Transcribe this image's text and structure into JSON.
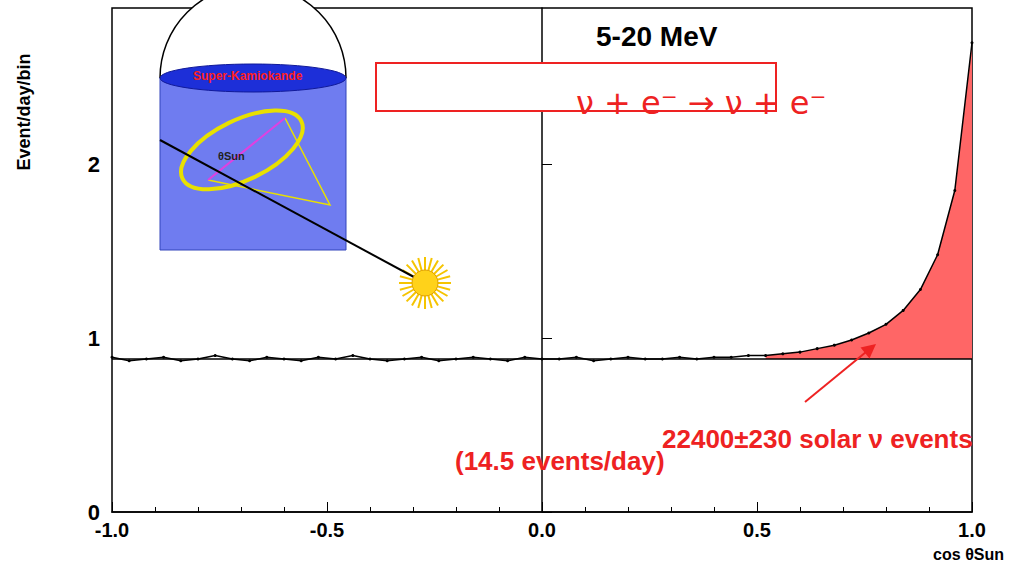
{
  "chart_data": {
    "type": "line",
    "title": "5-20 MeV",
    "annotations": [
      "ν + e⁻ → ν + e⁻",
      "22400±230 solar ν events",
      "(14.5 events/day)"
    ],
    "inset_labels": [
      "Super-Kamiokande",
      "θSun"
    ],
    "x_label": "cos θSun",
    "y_label": "Event/day/bin",
    "x": [
      -1.0,
      -0.96,
      -0.92,
      -0.88,
      -0.84,
      -0.8,
      -0.76,
      -0.72,
      -0.68,
      -0.64,
      -0.6,
      -0.56,
      -0.52,
      -0.48,
      -0.44,
      -0.4,
      -0.36,
      -0.32,
      -0.28,
      -0.24,
      -0.2,
      -0.16,
      -0.12,
      -0.08,
      -0.04,
      0.0,
      0.04,
      0.08,
      0.12,
      0.16,
      0.2,
      0.24,
      0.28,
      0.32,
      0.36,
      0.4,
      0.44,
      0.48,
      0.52,
      0.56,
      0.6,
      0.64,
      0.68,
      0.72,
      0.76,
      0.8,
      0.84,
      0.88,
      0.92,
      0.96,
      1.0
    ],
    "values": [
      0.89,
      0.87,
      0.88,
      0.89,
      0.87,
      0.88,
      0.9,
      0.88,
      0.87,
      0.89,
      0.88,
      0.87,
      0.89,
      0.88,
      0.9,
      0.88,
      0.87,
      0.88,
      0.89,
      0.87,
      0.88,
      0.89,
      0.88,
      0.87,
      0.89,
      0.88,
      0.88,
      0.89,
      0.87,
      0.88,
      0.89,
      0.88,
      0.88,
      0.89,
      0.88,
      0.89,
      0.89,
      0.9,
      0.9,
      0.91,
      0.92,
      0.94,
      0.96,
      0.99,
      1.03,
      1.08,
      1.16,
      1.28,
      1.48,
      1.85,
      2.7
    ],
    "color": "#000000",
    "background": 0.88,
    "signal_region": [
      0.52,
      1.0
    ],
    "signal_color": "#ff6666",
    "xlim": [
      -1,
      1
    ],
    "xticks": [
      {
        "value": -1,
        "label": "-1.0"
      },
      -0.5,
      {
        "value": 0,
        "label": "0.0"
      },
      0.5,
      {
        "value": 1,
        "label": "1.0"
      }
    ],
    "ylim": [
      0,
      2.9
    ],
    "yticks": [
      0,
      1,
      2
    ],
    "grid": false
  }
}
